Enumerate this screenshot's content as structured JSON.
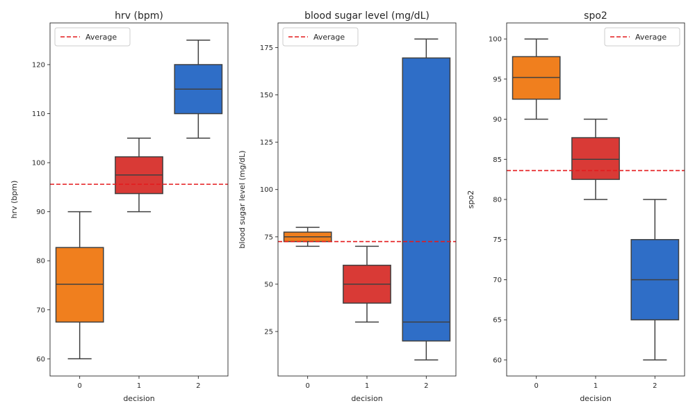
{
  "chart_data": [
    {
      "type": "box",
      "title": "hrv (bpm)",
      "xlabel": "decision",
      "ylabel": "hrv (bpm)",
      "categories": [
        "0",
        "1",
        "2"
      ],
      "ylim": [
        56.5,
        128.5
      ],
      "yticks": [
        60,
        70,
        80,
        90,
        100,
        110,
        120
      ],
      "boxes": [
        {
          "category": "0",
          "min": 60,
          "q1": 67.5,
          "median": 75.2,
          "q3": 82.7,
          "max": 90,
          "color": "#f07f1e"
        },
        {
          "category": "1",
          "min": 90,
          "q1": 93.7,
          "median": 97.5,
          "q3": 101.2,
          "max": 105,
          "color": "#d93a36"
        },
        {
          "category": "2",
          "min": 105,
          "q1": 110,
          "median": 115,
          "q3": 120,
          "max": 125,
          "color": "#2f6ec7"
        }
      ],
      "average": 95.6,
      "legend": {
        "label": "Average",
        "position": "upper left"
      }
    },
    {
      "type": "box",
      "title": "blood sugar level (mg/dL)",
      "xlabel": "decision",
      "ylabel": "blood sugar level (mg/dL)",
      "categories": [
        "0",
        "1",
        "2"
      ],
      "ylim": [
        1.5,
        188
      ],
      "yticks": [
        25,
        50,
        75,
        100,
        125,
        150,
        175
      ],
      "boxes": [
        {
          "category": "0",
          "min": 70,
          "q1": 72.5,
          "median": 75,
          "q3": 77.5,
          "max": 80,
          "color": "#f07f1e"
        },
        {
          "category": "1",
          "min": 30,
          "q1": 40,
          "median": 50,
          "q3": 60,
          "max": 70,
          "color": "#d93a36"
        },
        {
          "category": "2",
          "min": 10,
          "q1": 20,
          "median": 30,
          "q3": 169.5,
          "max": 179.5,
          "color": "#2f6ec7"
        }
      ],
      "average": 72.5,
      "legend": {
        "label": "Average",
        "position": "upper left"
      }
    },
    {
      "type": "box",
      "title": "spo2",
      "xlabel": "decision",
      "ylabel": "spo2",
      "categories": [
        "0",
        "1",
        "2"
      ],
      "ylim": [
        58,
        102
      ],
      "yticks": [
        60,
        65,
        70,
        75,
        80,
        85,
        90,
        95,
        100
      ],
      "boxes": [
        {
          "category": "0",
          "min": 90,
          "q1": 92.5,
          "median": 95.2,
          "q3": 97.8,
          "max": 100,
          "color": "#f07f1e"
        },
        {
          "category": "1",
          "min": 80,
          "q1": 82.5,
          "median": 85,
          "q3": 87.7,
          "max": 90,
          "color": "#d93a36"
        },
        {
          "category": "2",
          "min": 60,
          "q1": 65,
          "median": 70,
          "q3": 75,
          "max": 80,
          "color": "#2f6ec7"
        }
      ],
      "average": 83.6,
      "legend": {
        "label": "Average",
        "position": "upper right"
      }
    }
  ],
  "colors": {
    "average_line": "#e41a1c",
    "box_edge": "#404040",
    "axes": "#262626"
  }
}
